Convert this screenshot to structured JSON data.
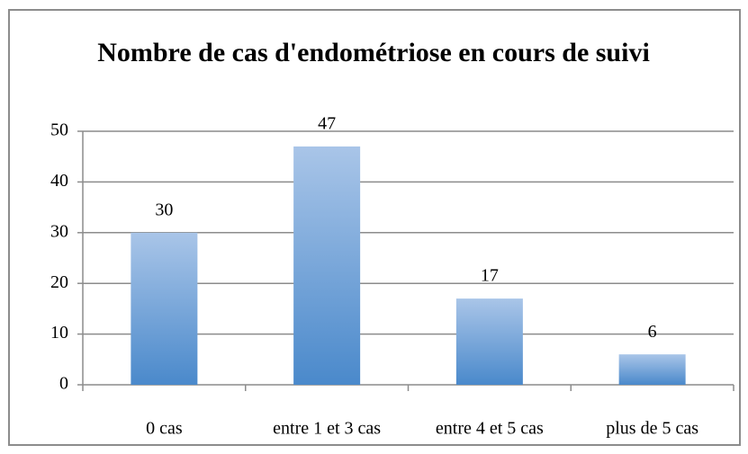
{
  "chart_data": {
    "type": "bar",
    "title": "Nombre de cas d'endométriose en cours de suivi",
    "categories": [
      "0 cas",
      "entre 1 et 3 cas",
      "entre 4 et 5 cas",
      "plus de 5 cas"
    ],
    "values": [
      30,
      47,
      17,
      6
    ],
    "color": "#4a89cb",
    "ylim": [
      0,
      50
    ],
    "yticks": [
      0,
      10,
      20,
      30,
      40,
      50
    ],
    "grid": true
  }
}
